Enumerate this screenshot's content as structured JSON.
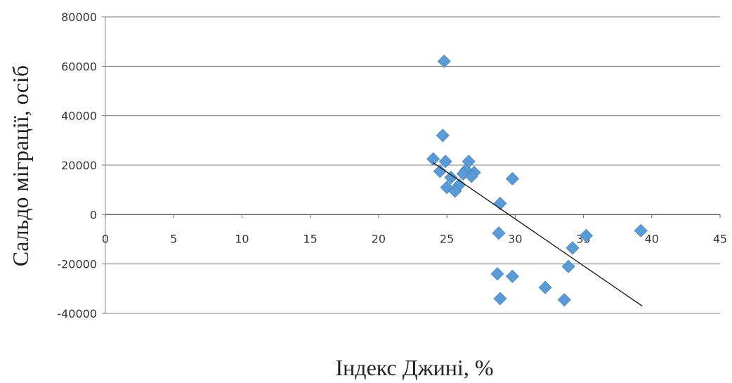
{
  "chart_data": {
    "type": "scatter",
    "xlabel": "Індекс Джині, %",
    "ylabel": "Сальдо міграції, осіб",
    "xlim": [
      0,
      45
    ],
    "ylim": [
      -40000,
      80000
    ],
    "x_ticks": [
      0,
      5,
      10,
      15,
      20,
      25,
      30,
      35,
      40,
      45
    ],
    "y_ticks": [
      -40000,
      -20000,
      0,
      20000,
      40000,
      60000,
      80000
    ],
    "x_tick_labels": [
      "0",
      "5",
      "10",
      "15",
      "20",
      "25",
      "30",
      "35",
      "40",
      "45"
    ],
    "y_tick_labels": [
      "-40000",
      "-20000",
      "0",
      "20000",
      "40000",
      "60000",
      "80000"
    ],
    "grid": "horizontal",
    "legend": "none",
    "marker": "diamond",
    "marker_color": "#5b9bd5",
    "trend_color": "#111111",
    "points": [
      {
        "x": 24.8,
        "y": 62000
      },
      {
        "x": 24.7,
        "y": 32000
      },
      {
        "x": 24.0,
        "y": 22500
      },
      {
        "x": 24.9,
        "y": 21500
      },
      {
        "x": 26.6,
        "y": 21500
      },
      {
        "x": 24.5,
        "y": 17500
      },
      {
        "x": 26.4,
        "y": 18000
      },
      {
        "x": 27.0,
        "y": 17000
      },
      {
        "x": 25.3,
        "y": 15000
      },
      {
        "x": 26.2,
        "y": 16500
      },
      {
        "x": 26.8,
        "y": 15500
      },
      {
        "x": 25.0,
        "y": 11000
      },
      {
        "x": 25.9,
        "y": 12000
      },
      {
        "x": 25.6,
        "y": 9500
      },
      {
        "x": 29.8,
        "y": 14500
      },
      {
        "x": 28.9,
        "y": 4500
      },
      {
        "x": 28.8,
        "y": -7500
      },
      {
        "x": 35.2,
        "y": -8500
      },
      {
        "x": 39.2,
        "y": -6500
      },
      {
        "x": 34.2,
        "y": -13500
      },
      {
        "x": 33.9,
        "y": -21000
      },
      {
        "x": 28.7,
        "y": -24000
      },
      {
        "x": 29.8,
        "y": -25000
      },
      {
        "x": 32.2,
        "y": -29500
      },
      {
        "x": 28.9,
        "y": -34000
      },
      {
        "x": 33.6,
        "y": -34500
      }
    ],
    "trendline": {
      "x": [
        24.0,
        39.3
      ],
      "y": [
        21000,
        -37000
      ]
    }
  }
}
